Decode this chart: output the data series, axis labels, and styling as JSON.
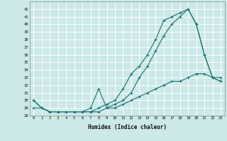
{
  "xlabel": "Humidex (Indice chaleur)",
  "ylabel": "",
  "bg_color": "#cce8e8",
  "grid_color": "#ffffff",
  "line_color": "#1a7070",
  "x_values": [
    0,
    1,
    2,
    3,
    4,
    5,
    6,
    7,
    8,
    9,
    10,
    11,
    12,
    13,
    14,
    15,
    16,
    17,
    18,
    19,
    20,
    21,
    22,
    23
  ],
  "line1": [
    30,
    29,
    28.5,
    28.5,
    28.5,
    28.5,
    28.5,
    28.5,
    29,
    29.5,
    30,
    31.5,
    33.5,
    34.5,
    36,
    38,
    40.5,
    41,
    41.5,
    42,
    40,
    36,
    33,
    32.5
  ],
  "line2": [
    30,
    29,
    28.5,
    28.5,
    28.5,
    28.5,
    28.5,
    29,
    31.5,
    29,
    29.5,
    30,
    31,
    33,
    34.5,
    36.5,
    38.5,
    40,
    41,
    42,
    40,
    36,
    33,
    32.5
  ],
  "line3": [
    29,
    29,
    28.5,
    28.5,
    28.5,
    28.5,
    28.5,
    28.5,
    28.5,
    29,
    29,
    29.5,
    30,
    30.5,
    31,
    31.5,
    32,
    32.5,
    32.5,
    33,
    33.5,
    33.5,
    33,
    33
  ],
  "ylim": [
    28,
    43
  ],
  "xlim": [
    -0.5,
    23.5
  ],
  "yticks": [
    28,
    29,
    30,
    31,
    32,
    33,
    34,
    35,
    36,
    37,
    38,
    39,
    40,
    41,
    42
  ],
  "xticks": [
    0,
    1,
    2,
    3,
    4,
    5,
    6,
    7,
    8,
    9,
    10,
    11,
    12,
    13,
    14,
    15,
    16,
    17,
    18,
    19,
    20,
    21,
    22,
    23
  ]
}
